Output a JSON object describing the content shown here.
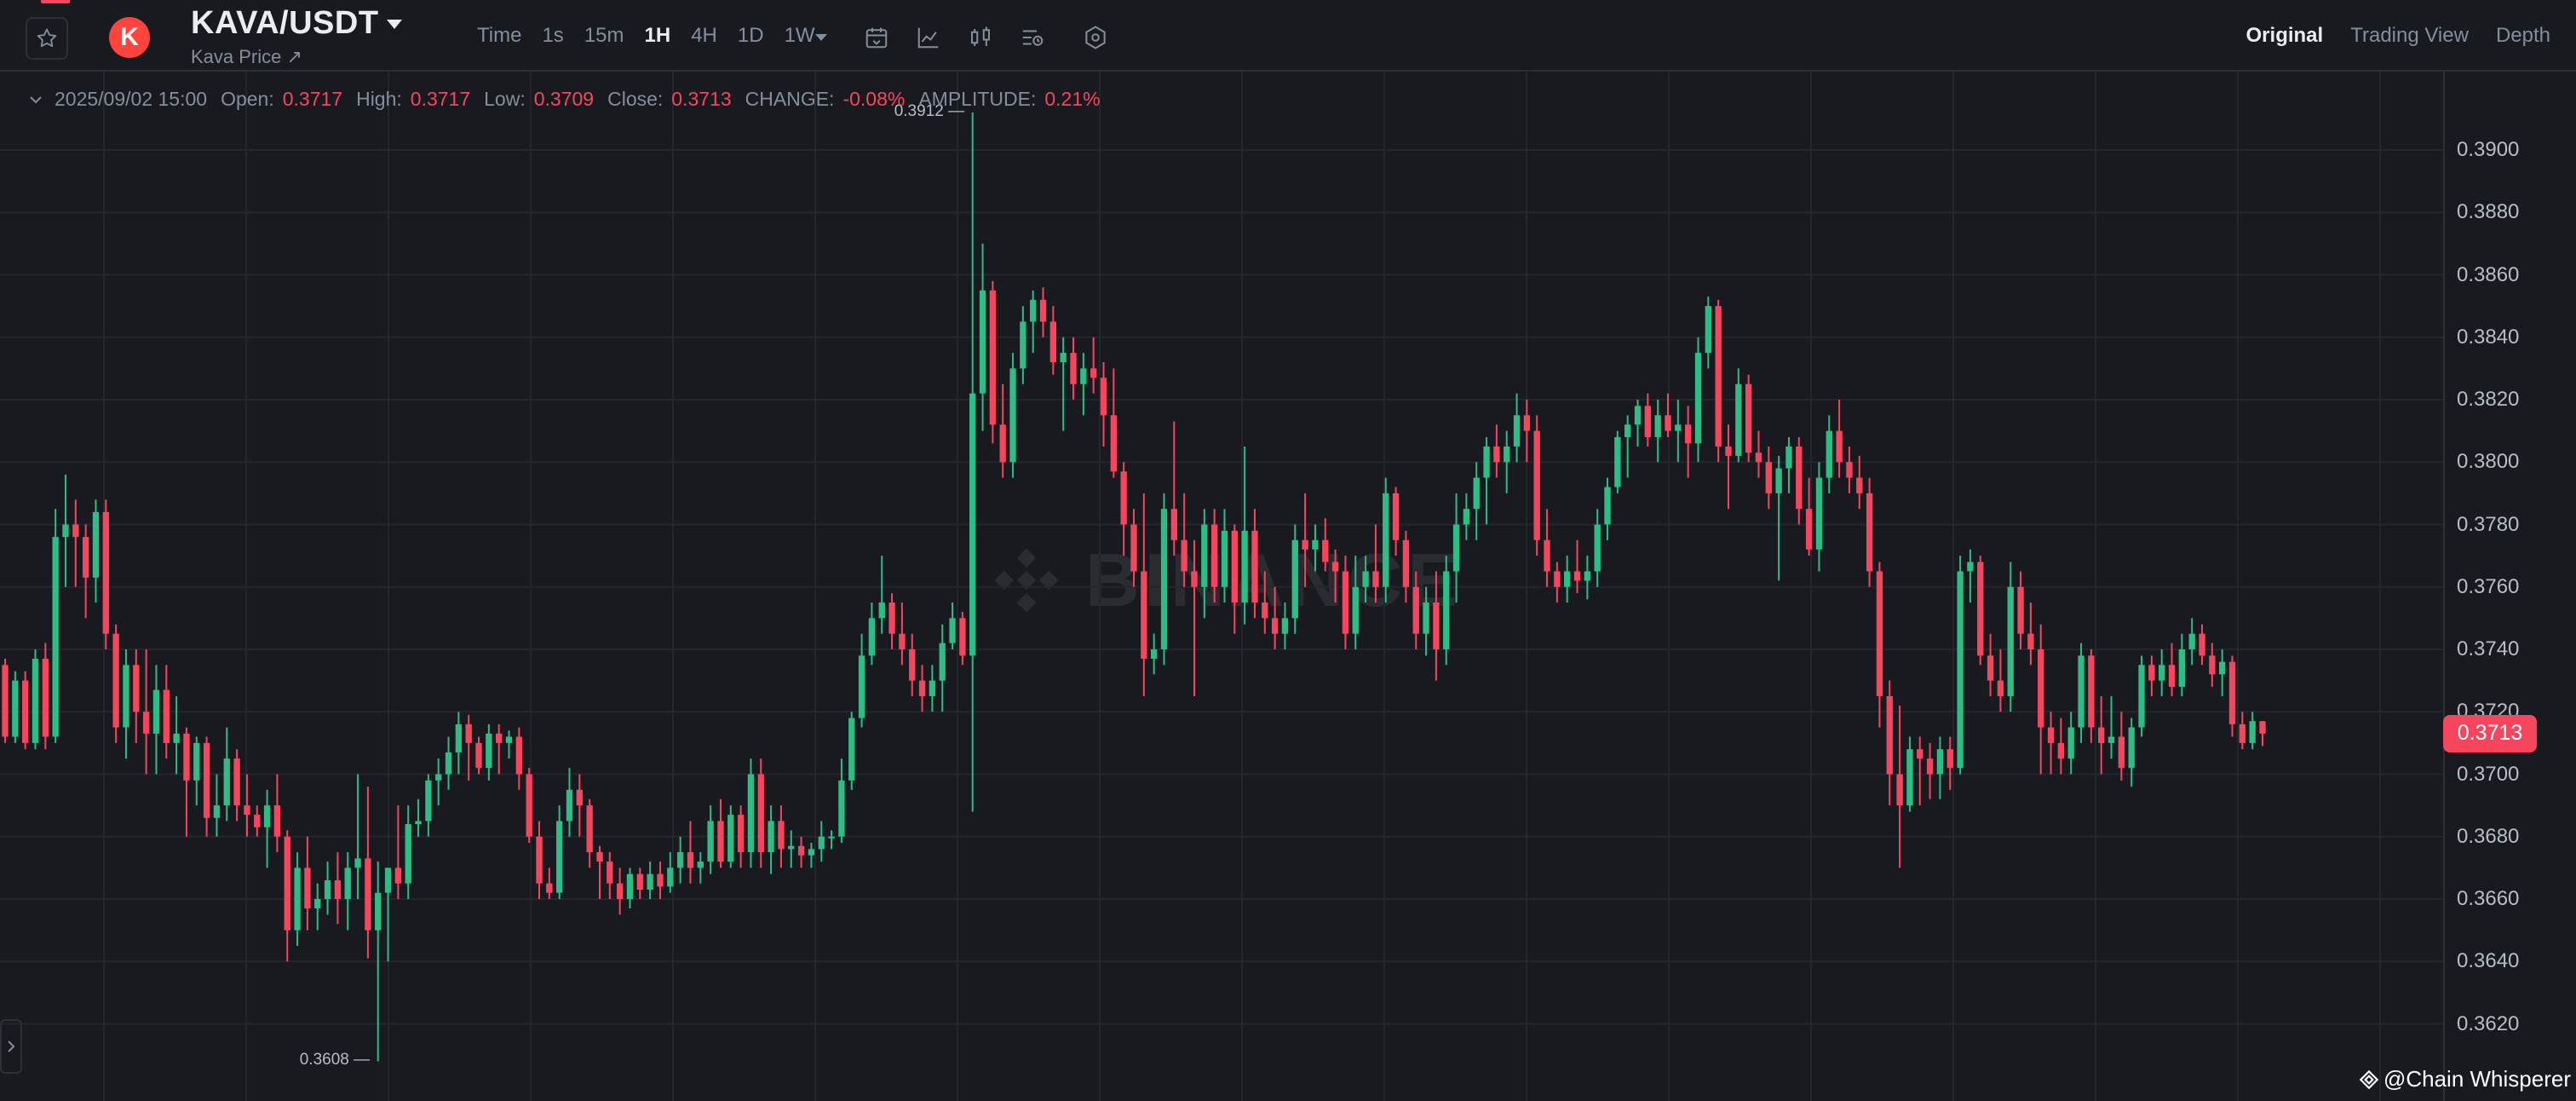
{
  "header": {
    "symbol": "KAVA/USDT",
    "subtitle": "Kava Price ↗",
    "logo_letter": "K",
    "intervals": [
      "Time",
      "1s",
      "15m",
      "1H",
      "4H",
      "1D",
      "1W"
    ],
    "active_interval": "1H",
    "views": [
      "Original",
      "Trading View",
      "Depth"
    ],
    "active_view": "Original"
  },
  "ohlc": {
    "datetime": "2025/09/02 15:00",
    "open_label": "Open:",
    "open": "0.3717",
    "high_label": "High:",
    "high": "0.3717",
    "low_label": "Low:",
    "low": "0.3709",
    "close_label": "Close:",
    "close": "0.3713",
    "change_label": "CHANGE:",
    "change": "-0.08%",
    "amplitude_label": "AMPLITUDE:",
    "amplitude": "0.21%"
  },
  "watermark_text": "BINANCE",
  "credit": "@Chain Whisperer",
  "colors": {
    "up": "#2ebd85",
    "down": "#f6465d",
    "bg": "#181a20",
    "grid": "#23262d"
  },
  "chart_data": {
    "type": "candlestick",
    "y_ticks": [
      "0.3900",
      "0.3880",
      "0.3860",
      "0.3840",
      "0.3820",
      "0.3800",
      "0.3780",
      "0.3760",
      "0.3740",
      "0.3720",
      "0.3700",
      "0.3680",
      "0.3660",
      "0.3640",
      "0.3620"
    ],
    "ylim": [
      0.3596,
      0.392
    ],
    "last_price": "0.3713",
    "max_label": "0.3912",
    "min_label": "0.3608",
    "candles": [
      [
        0.3735,
        0.3737,
        0.371,
        0.3712
      ],
      [
        0.3712,
        0.3733,
        0.371,
        0.373
      ],
      [
        0.373,
        0.3733,
        0.3708,
        0.371
      ],
      [
        0.371,
        0.374,
        0.3708,
        0.3737
      ],
      [
        0.3737,
        0.3742,
        0.3708,
        0.3712
      ],
      [
        0.3712,
        0.3785,
        0.371,
        0.3776
      ],
      [
        0.3776,
        0.3796,
        0.376,
        0.378
      ],
      [
        0.378,
        0.3788,
        0.376,
        0.3776
      ],
      [
        0.3776,
        0.378,
        0.375,
        0.3763
      ],
      [
        0.3763,
        0.3788,
        0.3755,
        0.3784
      ],
      [
        0.3784,
        0.3788,
        0.374,
        0.3745
      ],
      [
        0.3745,
        0.3748,
        0.371,
        0.3715
      ],
      [
        0.3715,
        0.374,
        0.3705,
        0.3735
      ],
      [
        0.3735,
        0.374,
        0.371,
        0.372
      ],
      [
        0.372,
        0.374,
        0.37,
        0.3713
      ],
      [
        0.3713,
        0.3735,
        0.37,
        0.3727
      ],
      [
        0.3727,
        0.3735,
        0.3705,
        0.371
      ],
      [
        0.371,
        0.3725,
        0.37,
        0.3713
      ],
      [
        0.3713,
        0.3715,
        0.368,
        0.3698
      ],
      [
        0.3698,
        0.3712,
        0.369,
        0.371
      ],
      [
        0.371,
        0.3712,
        0.368,
        0.3686
      ],
      [
        0.3686,
        0.37,
        0.368,
        0.369
      ],
      [
        0.369,
        0.3715,
        0.3685,
        0.3705
      ],
      [
        0.3705,
        0.3708,
        0.3685,
        0.369
      ],
      [
        0.369,
        0.37,
        0.368,
        0.3687
      ],
      [
        0.3687,
        0.369,
        0.368,
        0.3683
      ],
      [
        0.3683,
        0.3695,
        0.367,
        0.369
      ],
      [
        0.369,
        0.37,
        0.3675,
        0.368
      ],
      [
        0.368,
        0.3682,
        0.364,
        0.365
      ],
      [
        0.365,
        0.3675,
        0.3645,
        0.367
      ],
      [
        0.367,
        0.368,
        0.365,
        0.3657
      ],
      [
        0.3657,
        0.3665,
        0.365,
        0.366
      ],
      [
        0.366,
        0.3672,
        0.3655,
        0.3666
      ],
      [
        0.3666,
        0.3675,
        0.3652,
        0.366
      ],
      [
        0.366,
        0.3675,
        0.365,
        0.367
      ],
      [
        0.367,
        0.37,
        0.366,
        0.3673
      ],
      [
        0.3673,
        0.3696,
        0.3641,
        0.365
      ],
      [
        0.365,
        0.3672,
        0.3608,
        0.3662
      ],
      [
        0.3662,
        0.367,
        0.364,
        0.367
      ],
      [
        0.367,
        0.369,
        0.366,
        0.3665
      ],
      [
        0.3665,
        0.369,
        0.366,
        0.3684
      ],
      [
        0.3684,
        0.3692,
        0.368,
        0.3685
      ],
      [
        0.3685,
        0.37,
        0.368,
        0.3698
      ],
      [
        0.3698,
        0.3705,
        0.369,
        0.37
      ],
      [
        0.37,
        0.3712,
        0.3695,
        0.3707
      ],
      [
        0.3707,
        0.372,
        0.37,
        0.3716
      ],
      [
        0.3716,
        0.3719,
        0.3698,
        0.371
      ],
      [
        0.371,
        0.3712,
        0.37,
        0.3702
      ],
      [
        0.3702,
        0.3716,
        0.3698,
        0.3713
      ],
      [
        0.3713,
        0.3716,
        0.37,
        0.371
      ],
      [
        0.371,
        0.3714,
        0.3705,
        0.3712
      ],
      [
        0.3712,
        0.3715,
        0.3695,
        0.37
      ],
      [
        0.37,
        0.3702,
        0.3678,
        0.368
      ],
      [
        0.368,
        0.3685,
        0.366,
        0.3665
      ],
      [
        0.3665,
        0.367,
        0.366,
        0.3662
      ],
      [
        0.3662,
        0.369,
        0.366,
        0.3685
      ],
      [
        0.3685,
        0.3702,
        0.368,
        0.3695
      ],
      [
        0.3695,
        0.37,
        0.368,
        0.369
      ],
      [
        0.369,
        0.3692,
        0.367,
        0.3675
      ],
      [
        0.3675,
        0.3677,
        0.366,
        0.3672
      ],
      [
        0.3672,
        0.3675,
        0.366,
        0.3665
      ],
      [
        0.3665,
        0.367,
        0.3655,
        0.366
      ],
      [
        0.366,
        0.367,
        0.3657,
        0.3668
      ],
      [
        0.3668,
        0.367,
        0.366,
        0.3663
      ],
      [
        0.3663,
        0.3672,
        0.366,
        0.3668
      ],
      [
        0.3668,
        0.3672,
        0.366,
        0.3664
      ],
      [
        0.3664,
        0.3675,
        0.3662,
        0.367
      ],
      [
        0.367,
        0.368,
        0.3665,
        0.3675
      ],
      [
        0.3675,
        0.3685,
        0.3665,
        0.367
      ],
      [
        0.367,
        0.3675,
        0.3665,
        0.3672
      ],
      [
        0.3672,
        0.369,
        0.3668,
        0.3685
      ],
      [
        0.3685,
        0.3692,
        0.367,
        0.3672
      ],
      [
        0.3672,
        0.369,
        0.367,
        0.3687
      ],
      [
        0.3687,
        0.369,
        0.367,
        0.3675
      ],
      [
        0.3675,
        0.3705,
        0.367,
        0.37
      ],
      [
        0.37,
        0.3705,
        0.367,
        0.3675
      ],
      [
        0.3675,
        0.369,
        0.3668,
        0.3685
      ],
      [
        0.3685,
        0.369,
        0.367,
        0.3676
      ],
      [
        0.3676,
        0.3682,
        0.367,
        0.3677
      ],
      [
        0.3677,
        0.368,
        0.367,
        0.3674
      ],
      [
        0.3674,
        0.3678,
        0.367,
        0.3676
      ],
      [
        0.3676,
        0.3685,
        0.3672,
        0.368
      ],
      [
        0.368,
        0.3682,
        0.3676,
        0.368
      ],
      [
        0.368,
        0.3705,
        0.3678,
        0.3698
      ],
      [
        0.3698,
        0.372,
        0.3695,
        0.3718
      ],
      [
        0.3718,
        0.3745,
        0.3715,
        0.3738
      ],
      [
        0.3738,
        0.3755,
        0.3735,
        0.375
      ],
      [
        0.375,
        0.377,
        0.3745,
        0.3755
      ],
      [
        0.3755,
        0.3758,
        0.374,
        0.3745
      ],
      [
        0.3745,
        0.3755,
        0.3735,
        0.374
      ],
      [
        0.374,
        0.3745,
        0.3725,
        0.373
      ],
      [
        0.373,
        0.3735,
        0.372,
        0.3725
      ],
      [
        0.3725,
        0.3735,
        0.372,
        0.373
      ],
      [
        0.373,
        0.3748,
        0.372,
        0.3742
      ],
      [
        0.3742,
        0.3755,
        0.374,
        0.375
      ],
      [
        0.375,
        0.3752,
        0.3735,
        0.3738
      ],
      [
        0.3738,
        0.3912,
        0.3688,
        0.3822
      ],
      [
        0.3822,
        0.387,
        0.381,
        0.3855
      ],
      [
        0.3855,
        0.3858,
        0.3806,
        0.3812
      ],
      [
        0.3812,
        0.3825,
        0.3795,
        0.38
      ],
      [
        0.38,
        0.3835,
        0.3795,
        0.383
      ],
      [
        0.383,
        0.385,
        0.3825,
        0.3845
      ],
      [
        0.3845,
        0.3855,
        0.3835,
        0.3852
      ],
      [
        0.3852,
        0.3856,
        0.384,
        0.3845
      ],
      [
        0.3845,
        0.385,
        0.3828,
        0.3832
      ],
      [
        0.3832,
        0.384,
        0.381,
        0.3835
      ],
      [
        0.3835,
        0.384,
        0.382,
        0.3825
      ],
      [
        0.3825,
        0.3835,
        0.3815,
        0.383
      ],
      [
        0.383,
        0.384,
        0.3822,
        0.3827
      ],
      [
        0.3827,
        0.3832,
        0.3805,
        0.3815
      ],
      [
        0.3815,
        0.383,
        0.3795,
        0.3797
      ],
      [
        0.3797,
        0.38,
        0.377,
        0.378
      ],
      [
        0.378,
        0.3785,
        0.376,
        0.3765
      ],
      [
        0.3765,
        0.379,
        0.3725,
        0.3737
      ],
      [
        0.3737,
        0.3745,
        0.3732,
        0.374
      ],
      [
        0.374,
        0.379,
        0.3735,
        0.3785
      ],
      [
        0.3785,
        0.3813,
        0.377,
        0.3775
      ],
      [
        0.3775,
        0.379,
        0.376,
        0.3765
      ],
      [
        0.3765,
        0.3775,
        0.3725,
        0.376
      ],
      [
        0.376,
        0.3785,
        0.375,
        0.378
      ],
      [
        0.378,
        0.3785,
        0.3755,
        0.376
      ],
      [
        0.376,
        0.3785,
        0.3755,
        0.3778
      ],
      [
        0.3778,
        0.378,
        0.3745,
        0.3755
      ],
      [
        0.3755,
        0.3805,
        0.3748,
        0.3778
      ],
      [
        0.3778,
        0.3785,
        0.375,
        0.3755
      ],
      [
        0.3755,
        0.3765,
        0.3745,
        0.375
      ],
      [
        0.375,
        0.376,
        0.374,
        0.3745
      ],
      [
        0.3745,
        0.3755,
        0.374,
        0.375
      ],
      [
        0.375,
        0.378,
        0.3745,
        0.3775
      ],
      [
        0.3775,
        0.379,
        0.376,
        0.3772
      ],
      [
        0.3772,
        0.378,
        0.3765,
        0.3775
      ],
      [
        0.3775,
        0.3782,
        0.3765,
        0.3768
      ],
      [
        0.3768,
        0.3772,
        0.3755,
        0.3765
      ],
      [
        0.3765,
        0.377,
        0.374,
        0.3745
      ],
      [
        0.3745,
        0.377,
        0.374,
        0.376
      ],
      [
        0.376,
        0.377,
        0.3755,
        0.3765
      ],
      [
        0.3765,
        0.378,
        0.3755,
        0.376
      ],
      [
        0.376,
        0.3795,
        0.3755,
        0.379
      ],
      [
        0.379,
        0.3792,
        0.377,
        0.3775
      ],
      [
        0.3775,
        0.3778,
        0.3755,
        0.376
      ],
      [
        0.376,
        0.3765,
        0.374,
        0.3745
      ],
      [
        0.3745,
        0.376,
        0.3738,
        0.3755
      ],
      [
        0.3755,
        0.3765,
        0.373,
        0.374
      ],
      [
        0.374,
        0.377,
        0.3735,
        0.3765
      ],
      [
        0.3765,
        0.379,
        0.3755,
        0.378
      ],
      [
        0.378,
        0.379,
        0.3775,
        0.3785
      ],
      [
        0.3785,
        0.38,
        0.3775,
        0.3795
      ],
      [
        0.3795,
        0.3808,
        0.378,
        0.3805
      ],
      [
        0.3805,
        0.3812,
        0.3795,
        0.38
      ],
      [
        0.38,
        0.381,
        0.379,
        0.3805
      ],
      [
        0.3805,
        0.3822,
        0.38,
        0.3815
      ],
      [
        0.3815,
        0.382,
        0.38,
        0.381
      ],
      [
        0.381,
        0.3815,
        0.377,
        0.3775
      ],
      [
        0.3775,
        0.3785,
        0.376,
        0.3765
      ],
      [
        0.3765,
        0.3768,
        0.3755,
        0.376
      ],
      [
        0.376,
        0.377,
        0.3755,
        0.3765
      ],
      [
        0.3765,
        0.3775,
        0.3758,
        0.3762
      ],
      [
        0.3762,
        0.377,
        0.3756,
        0.3765
      ],
      [
        0.3765,
        0.3785,
        0.376,
        0.378
      ],
      [
        0.378,
        0.3795,
        0.3775,
        0.3792
      ],
      [
        0.3792,
        0.381,
        0.379,
        0.3808
      ],
      [
        0.3808,
        0.3815,
        0.3795,
        0.3812
      ],
      [
        0.3812,
        0.382,
        0.3805,
        0.3818
      ],
      [
        0.3818,
        0.3822,
        0.3805,
        0.3808
      ],
      [
        0.3808,
        0.382,
        0.38,
        0.3815
      ],
      [
        0.3815,
        0.3822,
        0.3808,
        0.381
      ],
      [
        0.381,
        0.382,
        0.38,
        0.3812
      ],
      [
        0.3812,
        0.3818,
        0.3795,
        0.3806
      ],
      [
        0.3806,
        0.384,
        0.38,
        0.3835
      ],
      [
        0.3835,
        0.3853,
        0.383,
        0.385
      ],
      [
        0.385,
        0.3852,
        0.38,
        0.3805
      ],
      [
        0.3805,
        0.3812,
        0.3785,
        0.3802
      ],
      [
        0.3802,
        0.383,
        0.38,
        0.3825
      ],
      [
        0.3825,
        0.3828,
        0.38,
        0.3803
      ],
      [
        0.3803,
        0.381,
        0.3795,
        0.38
      ],
      [
        0.38,
        0.3805,
        0.3785,
        0.379
      ],
      [
        0.379,
        0.3802,
        0.3762,
        0.3798
      ],
      [
        0.3798,
        0.3808,
        0.379,
        0.3805
      ],
      [
        0.3805,
        0.3808,
        0.378,
        0.3785
      ],
      [
        0.3785,
        0.3795,
        0.377,
        0.3772
      ],
      [
        0.3772,
        0.38,
        0.3765,
        0.3795
      ],
      [
        0.3795,
        0.3815,
        0.379,
        0.381
      ],
      [
        0.381,
        0.382,
        0.3795,
        0.38
      ],
      [
        0.38,
        0.3805,
        0.379,
        0.3795
      ],
      [
        0.3795,
        0.3802,
        0.3785,
        0.379
      ],
      [
        0.379,
        0.3795,
        0.376,
        0.3765
      ],
      [
        0.3765,
        0.3768,
        0.3715,
        0.3725
      ],
      [
        0.3725,
        0.373,
        0.369,
        0.37
      ],
      [
        0.37,
        0.3722,
        0.367,
        0.369
      ],
      [
        0.369,
        0.3712,
        0.3688,
        0.3708
      ],
      [
        0.3708,
        0.3712,
        0.369,
        0.3705
      ],
      [
        0.3705,
        0.371,
        0.3692,
        0.37
      ],
      [
        0.37,
        0.3712,
        0.3692,
        0.3708
      ],
      [
        0.3708,
        0.3712,
        0.3695,
        0.3702
      ],
      [
        0.3702,
        0.377,
        0.37,
        0.3765
      ],
      [
        0.3765,
        0.3772,
        0.3755,
        0.3768
      ],
      [
        0.3768,
        0.377,
        0.3735,
        0.3738
      ],
      [
        0.3738,
        0.3745,
        0.3725,
        0.373
      ],
      [
        0.373,
        0.374,
        0.372,
        0.3725
      ],
      [
        0.3725,
        0.3768,
        0.372,
        0.376
      ],
      [
        0.376,
        0.3765,
        0.374,
        0.3745
      ],
      [
        0.3745,
        0.3755,
        0.3735,
        0.374
      ],
      [
        0.374,
        0.3748,
        0.37,
        0.3715
      ],
      [
        0.3715,
        0.372,
        0.37,
        0.371
      ],
      [
        0.371,
        0.3718,
        0.37,
        0.3705
      ],
      [
        0.3705,
        0.372,
        0.37,
        0.3715
      ],
      [
        0.3715,
        0.3742,
        0.371,
        0.3738
      ],
      [
        0.3738,
        0.374,
        0.371,
        0.3715
      ],
      [
        0.3715,
        0.3725,
        0.37,
        0.371
      ],
      [
        0.371,
        0.3725,
        0.3705,
        0.3712
      ],
      [
        0.3712,
        0.372,
        0.3698,
        0.3702
      ],
      [
        0.3702,
        0.3718,
        0.3696,
        0.3715
      ],
      [
        0.3715,
        0.3738,
        0.3712,
        0.3735
      ],
      [
        0.3735,
        0.3738,
        0.3725,
        0.373
      ],
      [
        0.373,
        0.374,
        0.3725,
        0.3735
      ],
      [
        0.3735,
        0.3742,
        0.3725,
        0.3728
      ],
      [
        0.3728,
        0.3745,
        0.3725,
        0.374
      ],
      [
        0.374,
        0.375,
        0.3735,
        0.3745
      ],
      [
        0.3745,
        0.3748,
        0.3735,
        0.3738
      ],
      [
        0.3738,
        0.3742,
        0.3728,
        0.3732
      ],
      [
        0.3732,
        0.374,
        0.3725,
        0.3736
      ],
      [
        0.3736,
        0.3738,
        0.3712,
        0.3716
      ],
      [
        0.3716,
        0.372,
        0.3708,
        0.371
      ],
      [
        0.371,
        0.372,
        0.3708,
        0.3717
      ],
      [
        0.3717,
        0.3717,
        0.3709,
        0.3713
      ]
    ]
  }
}
